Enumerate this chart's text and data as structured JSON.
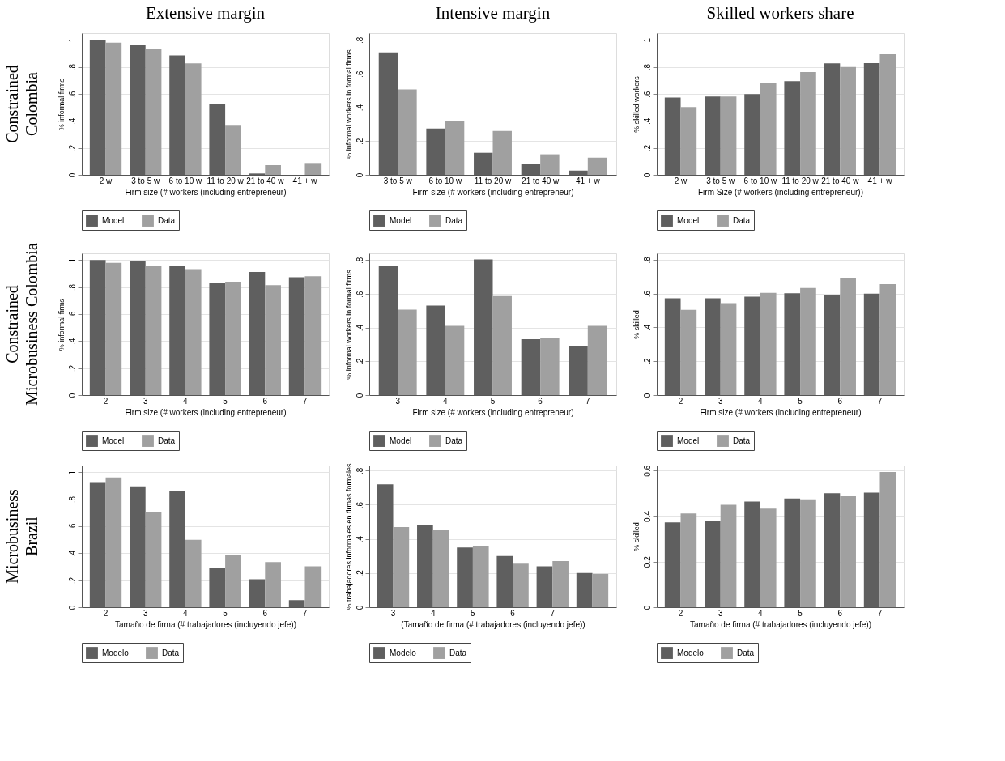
{
  "chart_data": [
    {
      "type": "bar",
      "title": "Extensive margin",
      "annotations": [
        "Constrained Colombia"
      ],
      "categories": [
        "2 w",
        "3 to 5 w",
        "6 to 10 w",
        "11 to 20 w",
        "21 to 40 w",
        "41 + w"
      ],
      "xlabel": "Firm size (# workers (including entrepreneur)",
      "ylabel": "% informal firms",
      "ylim": [
        0,
        1.05
      ],
      "yticks": [
        0,
        {
          "value": 0.2,
          "label": ".2"
        },
        {
          "value": 0.4,
          "label": ".4"
        },
        {
          "value": 0.6,
          "label": ".6"
        },
        {
          "value": 0.8,
          "label": ".8"
        },
        1
      ],
      "grid": "y",
      "legend": "bottom",
      "series": [
        {
          "name": "Model",
          "color": "#5f5f5f",
          "values": [
            1.0,
            0.96,
            0.885,
            0.525,
            0.01,
            0
          ]
        },
        {
          "name": "Data",
          "color": "#a0a0a0",
          "values": [
            0.98,
            0.935,
            0.826,
            0.364,
            0.072,
            0.088
          ]
        }
      ]
    },
    {
      "type": "bar",
      "title": "Intensive margin",
      "categories": [
        "3 to 5 w",
        "6 to 10 w",
        "11 to 20 w",
        "21 to 40 w",
        "41 + w"
      ],
      "xlabel": "Firm size (# workers (including entrepreneur)",
      "ylabel": "% informal workers in formal firms",
      "ylim": [
        0,
        0.84
      ],
      "yticks": [
        0,
        {
          "value": 0.2,
          "label": ".2"
        },
        {
          "value": 0.4,
          "label": ".4"
        },
        {
          "value": 0.6,
          "label": ".6"
        },
        {
          "value": 0.8,
          "label": ".8"
        }
      ],
      "grid": "y",
      "legend": "bottom",
      "series": [
        {
          "name": "Model",
          "color": "#5f5f5f",
          "values": [
            0.726,
            0.275,
            0.131,
            0.065,
            0.025
          ]
        },
        {
          "name": "Data",
          "color": "#a0a0a0",
          "values": [
            0.507,
            0.319,
            0.26,
            0.122,
            0.102
          ]
        }
      ]
    },
    {
      "type": "bar",
      "title": "Skilled workers share",
      "categories": [
        "2 w",
        "3 to 5 w",
        "6 to 10 w",
        "11 to 20 w",
        "21 to 40 w",
        "41 + w"
      ],
      "xlabel": "Firm Size (# workers (including entrepreneur))",
      "ylabel": "% skilled workers",
      "ylim": [
        0,
        1.05
      ],
      "yticks": [
        0,
        {
          "value": 0.2,
          "label": ".2"
        },
        {
          "value": 0.4,
          "label": ".4"
        },
        {
          "value": 0.6,
          "label": ".6"
        },
        {
          "value": 0.8,
          "label": ".8"
        },
        1
      ],
      "grid": "y",
      "legend": "bottom",
      "series": [
        {
          "name": "Model",
          "color": "#5f5f5f",
          "values": [
            0.573,
            0.58,
            0.599,
            0.694,
            0.826,
            0.828
          ]
        },
        {
          "name": "Data",
          "color": "#a0a0a0",
          "values": [
            0.503,
            0.58,
            0.684,
            0.762,
            0.8,
            0.894
          ]
        }
      ]
    },
    {
      "type": "bar",
      "annotations": [
        "Constrained Microbusiness Colombia"
      ],
      "categories": [
        "2",
        "3",
        "4",
        "5",
        "6",
        "7"
      ],
      "xlabel": "Firm size (# workers (including entrepreneur)",
      "ylabel": "% informal firms",
      "ylim": [
        0,
        1.05
      ],
      "yticks": [
        0,
        {
          "value": 0.2,
          "label": ".2"
        },
        {
          "value": 0.4,
          "label": ".4"
        },
        {
          "value": 0.6,
          "label": ".6"
        },
        {
          "value": 0.8,
          "label": ".8"
        },
        1
      ],
      "grid": "y",
      "legend": "bottom",
      "series": [
        {
          "name": "Model",
          "color": "#5f5f5f",
          "values": [
            1.0,
            0.993,
            0.956,
            0.831,
            0.912,
            0.873
          ]
        },
        {
          "name": "Data",
          "color": "#a0a0a0",
          "values": [
            0.979,
            0.954,
            0.933,
            0.84,
            0.815,
            0.88
          ]
        }
      ]
    },
    {
      "type": "bar",
      "categories": [
        "3",
        "4",
        "5",
        "6",
        "7"
      ],
      "xlabel": "Firm size (# workers (including entrepreneur)",
      "ylabel": "% informal workers in formal firms",
      "ylim": [
        0,
        0.84
      ],
      "yticks": [
        0,
        {
          "value": 0.2,
          "label": ".2"
        },
        {
          "value": 0.4,
          "label": ".4"
        },
        {
          "value": 0.6,
          "label": ".6"
        },
        {
          "value": 0.8,
          "label": ".8"
        }
      ],
      "grid": "y",
      "legend": "bottom",
      "series": [
        {
          "name": "Model",
          "color": "#5f5f5f",
          "values": [
            0.765,
            0.531,
            0.804,
            0.331,
            0.292
          ]
        },
        {
          "name": "Data",
          "color": "#a0a0a0",
          "values": [
            0.506,
            0.411,
            0.587,
            0.336,
            0.411
          ]
        }
      ]
    },
    {
      "type": "bar",
      "categories": [
        "2",
        "3",
        "4",
        "5",
        "6",
        "7"
      ],
      "xlabel": "Firm size (# workers (including entrepreneur)",
      "ylabel": "% skilled",
      "ylim": [
        0,
        0.837
      ],
      "yticks": [
        0,
        {
          "value": 0.2,
          "label": ".2"
        },
        {
          "value": 0.4,
          "label": ".4"
        },
        {
          "value": 0.6,
          "label": ".6"
        },
        {
          "value": 0.8,
          "label": ".8"
        }
      ],
      "grid": "y",
      "legend": "bottom",
      "series": [
        {
          "name": "Model",
          "color": "#5f5f5f",
          "values": [
            0.572,
            0.572,
            0.581,
            0.601,
            0.589,
            0.599
          ]
        },
        {
          "name": "Data",
          "color": "#a0a0a0",
          "values": [
            0.503,
            0.543,
            0.604,
            0.632,
            0.693,
            0.655
          ]
        }
      ]
    },
    {
      "type": "bar",
      "annotations": [
        "Microbusiness Brazil"
      ],
      "categories": [
        "2",
        "3",
        "4",
        "5",
        "6",
        "7"
      ],
      "xlabel": "Tamaño de firma (# trabajadores (incluyendo jefe))",
      "ylim": [
        0,
        1.05
      ],
      "yticks": [
        0,
        {
          "value": 0.2,
          "label": ".2"
        },
        {
          "value": 0.4,
          "label": ".4"
        },
        {
          "value": 0.6,
          "label": ".6"
        },
        {
          "value": 0.8,
          "label": ".8"
        },
        1
      ],
      "grid": "y",
      "legend": "bottom",
      "series": [
        {
          "name": "Modelo",
          "color": "#5f5f5f",
          "values": [
            0.927,
            0.896,
            0.859,
            0.293,
            0.207,
            0.053
          ]
        },
        {
          "name": "Data",
          "color": "#a0a0a0",
          "values": [
            0.961,
            0.707,
            0.5,
            0.388,
            0.335,
            0.303
          ]
        }
      ]
    },
    {
      "type": "bar",
      "categories": [
        "3",
        "4",
        "5",
        "6",
        "7",
        null
      ],
      "xlabel": "(Tamaño de firma (# trabajadores (incluyendo jefe))",
      "ylabel": "% trabajadores informales en firmas formales",
      "ylim": [
        0,
        0.83
      ],
      "yticks": [
        0,
        {
          "value": 0.2,
          "label": ".2"
        },
        {
          "value": 0.4,
          "label": ".4"
        },
        {
          "value": 0.6,
          "label": ".6"
        },
        {
          "value": 0.8,
          "label": ".8"
        }
      ],
      "grid": "y",
      "legend": "bottom",
      "series": [
        {
          "name": "Modelo",
          "color": "#5f5f5f",
          "values": [
            0.72,
            0.48,
            0.35,
            0.3,
            0.24,
            0.2
          ]
        },
        {
          "name": "Data",
          "color": "#a0a0a0",
          "values": [
            0.47,
            0.45,
            0.36,
            0.255,
            0.27,
            0.195
          ]
        }
      ]
    },
    {
      "type": "bar",
      "categories": [
        "2",
        "3",
        "4",
        "5",
        "6",
        "7"
      ],
      "xlabel": "Tamaño de firma (# trabajadores (incluyendo jefe))",
      "ylabel": "% skilled",
      "ylim": [
        0,
        0.622
      ],
      "yticks": [
        0,
        0.2,
        0.4,
        0.6
      ],
      "grid": "y",
      "legend": "bottom",
      "series": [
        {
          "name": "Modelo",
          "color": "#5f5f5f",
          "values": [
            0.372,
            0.377,
            0.464,
            0.477,
            0.5,
            0.503
          ]
        },
        {
          "name": "Data",
          "color": "#a0a0a0",
          "values": [
            0.411,
            0.45,
            0.433,
            0.474,
            0.487,
            0.594
          ]
        }
      ]
    }
  ]
}
